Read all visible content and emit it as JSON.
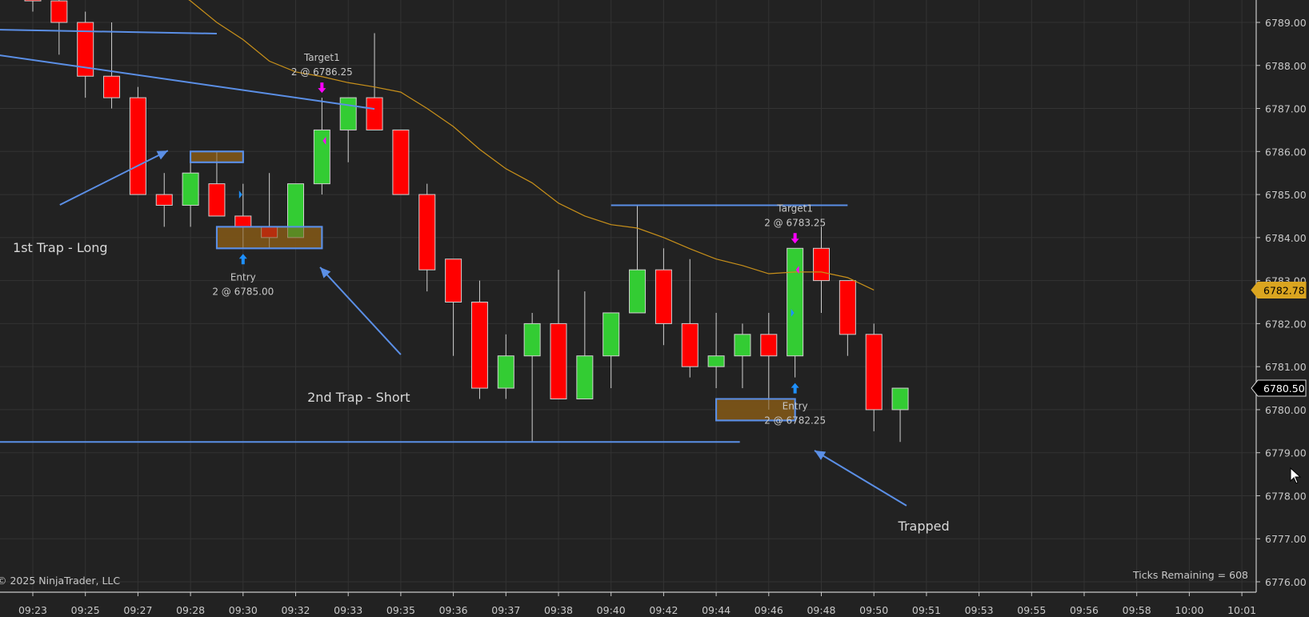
{
  "chart_data": {
    "type": "candlestick",
    "instrument_copyright": "© 2025 NinjaTrader, LLC",
    "status_text": "Ticks Remaining = 608",
    "grid": true,
    "colors": {
      "background": "#222222",
      "grid": "#333333",
      "up": "#33cc33",
      "down": "#ff0000",
      "candle_outline": "#d0d0d0",
      "ema": "#c8901a",
      "drawings": "#5b8fe6",
      "zone_fill": "#7a5418",
      "target_marker": "#ff00ff",
      "entry_marker": "#1e90ff",
      "last_price_tag": "#daa520"
    },
    "ylim": [
      6776,
      6789
    ],
    "y_ticks": [
      "6789.00",
      "6788.00",
      "6787.00",
      "6786.00",
      "6785.00",
      "6784.00",
      "6783.00",
      "6782.00",
      "6781.00",
      "6780.00",
      "6779.00",
      "6778.00",
      "6777.00",
      "6776.00"
    ],
    "x_tick_labels": [
      "09:23",
      "09:25",
      "09:27",
      "09:28",
      "09:30",
      "09:32",
      "09:33",
      "09:35",
      "09:36",
      "09:37",
      "09:38",
      "09:40",
      "09:42",
      "09:44",
      "09:46",
      "09:48",
      "09:50",
      "09:51",
      "09:53",
      "09:55",
      "09:56",
      "09:58",
      "10:00",
      "10:01"
    ],
    "candles": [
      {
        "o": 6790.0,
        "h": 6790.25,
        "l": 6789.25,
        "c": 6789.5
      },
      {
        "o": 6789.5,
        "h": 6789.75,
        "l": 6788.25,
        "c": 6789.0
      },
      {
        "o": 6789.0,
        "h": 6789.25,
        "l": 6787.25,
        "c": 6787.75
      },
      {
        "o": 6787.75,
        "h": 6789.0,
        "l": 6787.0,
        "c": 6787.25
      },
      {
        "o": 6787.25,
        "h": 6787.5,
        "l": 6785.0,
        "c": 6785.0
      },
      {
        "o": 6785.0,
        "h": 6785.5,
        "l": 6784.25,
        "c": 6784.75
      },
      {
        "o": 6784.75,
        "h": 6785.75,
        "l": 6784.25,
        "c": 6785.5
      },
      {
        "o": 6785.25,
        "h": 6786.0,
        "l": 6784.5,
        "c": 6784.5
      },
      {
        "o": 6784.5,
        "h": 6785.25,
        "l": 6783.75,
        "c": 6784.25
      },
      {
        "o": 6784.25,
        "h": 6785.5,
        "l": 6783.75,
        "c": 6784.0
      },
      {
        "o": 6784.0,
        "h": 6785.25,
        "l": 6784.0,
        "c": 6785.25
      },
      {
        "o": 6785.25,
        "h": 6787.25,
        "l": 6785.0,
        "c": 6786.5
      },
      {
        "o": 6786.5,
        "h": 6787.25,
        "l": 6785.75,
        "c": 6787.25
      },
      {
        "o": 6787.25,
        "h": 6788.75,
        "l": 6786.5,
        "c": 6786.5
      },
      {
        "o": 6786.5,
        "h": 6786.5,
        "l": 6785.0,
        "c": 6785.0
      },
      {
        "o": 6785.0,
        "h": 6785.25,
        "l": 6782.75,
        "c": 6783.25
      },
      {
        "o": 6783.5,
        "h": 6783.5,
        "l": 6781.25,
        "c": 6782.5
      },
      {
        "o": 6782.5,
        "h": 6783.0,
        "l": 6780.25,
        "c": 6780.5
      },
      {
        "o": 6780.5,
        "h": 6781.75,
        "l": 6780.25,
        "c": 6781.25
      },
      {
        "o": 6781.25,
        "h": 6782.25,
        "l": 6779.25,
        "c": 6782.0
      },
      {
        "o": 6782.0,
        "h": 6783.25,
        "l": 6780.25,
        "c": 6780.25
      },
      {
        "o": 6780.25,
        "h": 6782.75,
        "l": 6780.25,
        "c": 6781.25
      },
      {
        "o": 6781.25,
        "h": 6782.25,
        "l": 6780.5,
        "c": 6782.25
      },
      {
        "o": 6782.25,
        "h": 6784.75,
        "l": 6782.25,
        "c": 6783.25
      },
      {
        "o": 6783.25,
        "h": 6783.75,
        "l": 6781.5,
        "c": 6782.0
      },
      {
        "o": 6782.0,
        "h": 6783.5,
        "l": 6780.75,
        "c": 6781.0
      },
      {
        "o": 6781.0,
        "h": 6782.25,
        "l": 6780.5,
        "c": 6781.25
      },
      {
        "o": 6781.25,
        "h": 6782.0,
        "l": 6780.5,
        "c": 6781.75
      },
      {
        "o": 6781.75,
        "h": 6782.25,
        "l": 6780.0,
        "c": 6781.25
      },
      {
        "o": 6781.25,
        "h": 6783.75,
        "l": 6780.75,
        "c": 6783.75
      },
      {
        "o": 6783.75,
        "h": 6784.25,
        "l": 6782.25,
        "c": 6783.0
      },
      {
        "o": 6783.0,
        "h": 6783.0,
        "l": 6781.25,
        "c": 6781.75
      },
      {
        "o": 6781.75,
        "h": 6782.0,
        "l": 6779.5,
        "c": 6780.0
      },
      {
        "o": 6780.0,
        "h": 6780.5,
        "l": 6779.25,
        "c": 6780.5
      }
    ],
    "ema": [
      [
        5,
        6789.9
      ],
      [
        6,
        6789.5
      ],
      [
        7,
        6789.0
      ],
      [
        8,
        6788.6
      ],
      [
        9,
        6788.1
      ],
      [
        10,
        6787.85
      ],
      [
        11,
        6787.74
      ],
      [
        12,
        6787.6
      ],
      [
        13,
        6787.5
      ],
      [
        14,
        6787.38
      ],
      [
        15,
        6787.0
      ],
      [
        16,
        6786.58
      ],
      [
        17,
        6786.05
      ],
      [
        18,
        6785.6
      ],
      [
        19,
        6785.27
      ],
      [
        20,
        6784.8
      ],
      [
        21,
        6784.5
      ],
      [
        22,
        6784.3
      ],
      [
        23,
        6784.22
      ],
      [
        24,
        6784.0
      ],
      [
        25,
        6783.74
      ],
      [
        26,
        6783.5
      ],
      [
        27,
        6783.35
      ],
      [
        28,
        6783.16
      ],
      [
        29,
        6783.2
      ],
      [
        30,
        6783.2
      ],
      [
        31,
        6783.07
      ],
      [
        32,
        6782.78
      ]
    ],
    "price_tags": [
      {
        "label": "6782.78",
        "price": 6782.78,
        "kind": "ema"
      },
      {
        "label": "6780.50",
        "price": 6780.5,
        "kind": "last"
      }
    ],
    "lines": [
      {
        "from": [
          -1.3,
          6788.83
        ],
        "to": [
          7.0,
          6788.74
        ]
      },
      {
        "from": [
          -1.3,
          6788.24
        ],
        "to": [
          13.0,
          6786.99
        ]
      },
      {
        "from": [
          22,
          6784.75
        ],
        "to": [
          31,
          6784.75
        ]
      },
      {
        "from": [
          -1.3,
          6779.25
        ],
        "to": [
          26.9,
          6779.25
        ]
      }
    ],
    "zones": [
      {
        "bars": [
          6,
          8
        ],
        "prices": [
          6785.75,
          6786.0
        ]
      },
      {
        "bars": [
          7,
          11
        ],
        "prices": [
          6783.75,
          6784.25
        ]
      },
      {
        "bars": [
          26,
          29
        ],
        "prices": [
          6779.75,
          6780.25
        ]
      }
    ],
    "arrows": [
      {
        "from": [
          1.03,
          6784.76
        ],
        "to": [
          5.14,
          6786.02
        ]
      },
      {
        "from": [
          14.0,
          6781.28
        ],
        "to": [
          10.93,
          6783.31
        ]
      },
      {
        "from": [
          33.24,
          6777.77
        ],
        "to": [
          29.74,
          6779.05
        ]
      }
    ],
    "annotations": [
      {
        "text": "1st Trap - Long",
        "at": [
          -0.76,
          6783.77
        ],
        "anchor": "start"
      },
      {
        "text": "2nd Trap - Short",
        "at": [
          12.4,
          6780.3
        ],
        "anchor": "middle"
      },
      {
        "text": "Trapped",
        "at": [
          33.9,
          6777.3
        ],
        "anchor": "middle"
      }
    ],
    "executions": [
      {
        "type": "target",
        "name": "Target1",
        "detail": "2 @ 6786.25",
        "bar": 11,
        "price": 6786.25
      },
      {
        "type": "entry",
        "name": "Entry",
        "detail": "2 @ 6785.00",
        "bar": 8,
        "price": 6785.0
      },
      {
        "type": "target",
        "name": "Target1",
        "detail": "2 @ 6783.25",
        "bar": 29,
        "price": 6783.25
      },
      {
        "type": "entry",
        "name": "Entry",
        "detail": "2 @ 6782.25",
        "bar": 29,
        "price": 6782.25
      }
    ]
  }
}
